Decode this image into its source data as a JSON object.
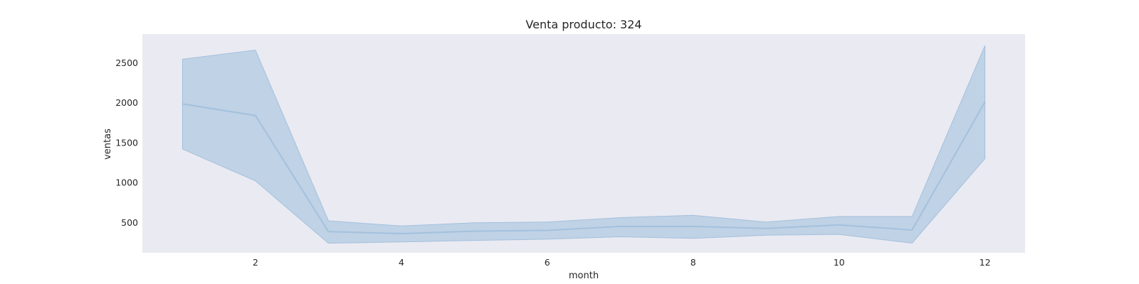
{
  "chart_data": {
    "type": "line",
    "title": "Venta producto: 324",
    "xlabel": "month",
    "ylabel": "ventas",
    "xlim": [
      0.45,
      12.55
    ],
    "ylim": [
      120,
      2860
    ],
    "xticks": [
      2,
      4,
      6,
      8,
      10,
      12
    ],
    "yticks": [
      500,
      1000,
      1500,
      2000,
      2500
    ],
    "grid": false,
    "background_color": "#eaeaf2",
    "line_color": "#a3c1dd",
    "band_color": "#b9cee3",
    "series": [
      {
        "x": [
          1,
          2,
          3,
          4,
          5,
          6,
          7,
          8,
          9,
          10,
          11,
          12
        ],
        "y": [
          1985,
          1840,
          385,
          360,
          390,
          400,
          450,
          450,
          425,
          470,
          405,
          2010
        ],
        "ci_lower": [
          1420,
          1020,
          240,
          255,
          275,
          290,
          320,
          300,
          340,
          350,
          240,
          1300
        ],
        "ci_upper": [
          2545,
          2660,
          520,
          455,
          495,
          505,
          560,
          590,
          505,
          575,
          575,
          2715
        ]
      }
    ]
  }
}
